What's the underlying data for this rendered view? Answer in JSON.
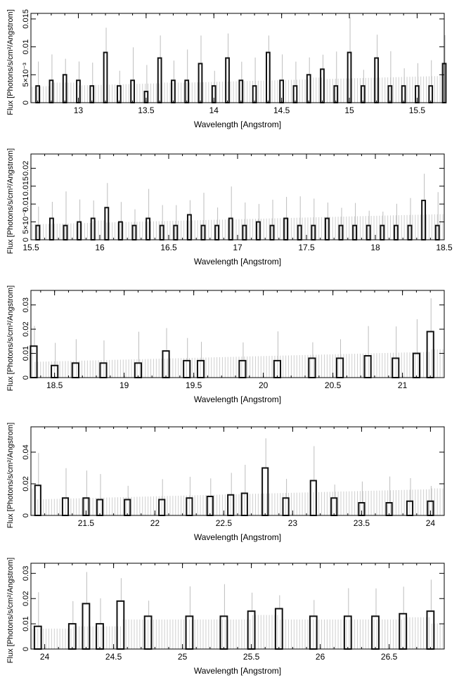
{
  "colors": {
    "model": "#cfcfcf",
    "data": "#111111",
    "errorbar": "#bdbdbd",
    "axis": "#000000"
  },
  "chart_data": [
    {
      "type": "line",
      "xlabel": "Wavelength [Angstrom]",
      "ylabel": "Flux [Photons/s/cm²/Angstrom]",
      "xlim": [
        12.65,
        15.7
      ],
      "ylim": [
        0,
        0.016
      ],
      "xticks": [
        13,
        13.5,
        14,
        14.5,
        15,
        15.5
      ],
      "xticklabels": [
        "13",
        "13.5",
        "14",
        "14.5",
        "15",
        "15.5"
      ],
      "yticks": [
        0,
        0.005,
        0.01,
        0.015
      ],
      "yticklabels": [
        "0",
        "5×10⁻³",
        "0.01",
        "0.015"
      ],
      "grid": false,
      "series": [
        {
          "x": [
            12.7,
            12.8,
            12.9,
            13.0,
            13.1,
            13.2,
            13.3,
            13.4,
            13.5,
            13.6,
            13.7,
            13.8,
            13.9,
            14.0,
            14.1,
            14.2,
            14.3,
            14.4,
            14.5,
            14.6,
            14.7,
            14.8,
            14.9,
            15.0,
            15.1,
            15.2,
            15.3,
            15.4,
            15.5,
            15.6,
            15.7
          ],
          "y": [
            0.003,
            0.004,
            0.005,
            0.004,
            0.003,
            0.009,
            0.003,
            0.004,
            0.002,
            0.008,
            0.004,
            0.004,
            0.007,
            0.003,
            0.008,
            0.004,
            0.003,
            0.009,
            0.004,
            0.003,
            0.005,
            0.006,
            0.003,
            0.009,
            0.003,
            0.008,
            0.003,
            0.003,
            0.003,
            0.003,
            0.007
          ]
        }
      ]
    },
    {
      "type": "line",
      "xlabel": "Wavelength [Angstrom]",
      "ylabel": "Flux [Photons/s/cm²/Angstrom]",
      "xlim": [
        15.5,
        18.5
      ],
      "ylim": [
        0,
        0.024
      ],
      "xticks": [
        15.5,
        16,
        16.5,
        17,
        17.5,
        18,
        18.5
      ],
      "xticklabels": [
        "15.5",
        "16",
        "16.5",
        "17",
        "17.5",
        "18",
        "18.5"
      ],
      "yticks": [
        0,
        0.005,
        0.01,
        0.015,
        0.02
      ],
      "yticklabels": [
        "0",
        "5×10⁻³",
        "0.01",
        "0.015",
        "0.02"
      ],
      "grid": false,
      "series": [
        {
          "x": [
            15.55,
            15.65,
            15.75,
            15.85,
            15.95,
            16.05,
            16.15,
            16.25,
            16.35,
            16.45,
            16.55,
            16.65,
            16.75,
            16.85,
            16.95,
            17.05,
            17.15,
            17.25,
            17.35,
            17.45,
            17.55,
            17.65,
            17.75,
            17.85,
            17.95,
            18.05,
            18.15,
            18.25,
            18.35,
            18.45
          ],
          "y": [
            0.004,
            0.006,
            0.004,
            0.005,
            0.006,
            0.009,
            0.005,
            0.004,
            0.006,
            0.004,
            0.004,
            0.007,
            0.004,
            0.004,
            0.006,
            0.004,
            0.005,
            0.004,
            0.006,
            0.004,
            0.004,
            0.006,
            0.004,
            0.004,
            0.004,
            0.004,
            0.004,
            0.004,
            0.011,
            0.004
          ]
        }
      ]
    },
    {
      "type": "line",
      "xlabel": "Wavelength [Angstrom]",
      "ylabel": "Flux [Photons/s/cm²/Angstrom]",
      "xlim": [
        18.33,
        21.3
      ],
      "ylim": [
        0,
        0.036
      ],
      "xticks": [
        18.5,
        19,
        19.5,
        20,
        20.5,
        21
      ],
      "xticklabels": [
        "18.5",
        "19",
        "19.5",
        "20",
        "20.5",
        "21"
      ],
      "yticks": [
        0,
        0.01,
        0.02,
        0.03
      ],
      "yticklabels": [
        "0",
        "0.01",
        "0.02",
        "0.03"
      ],
      "grid": false,
      "series": [
        {
          "x": [
            18.35,
            18.5,
            18.65,
            18.85,
            19.1,
            19.3,
            19.45,
            19.55,
            19.85,
            20.1,
            20.35,
            20.55,
            20.75,
            20.95,
            21.1,
            21.2
          ],
          "y": [
            0.013,
            0.005,
            0.006,
            0.006,
            0.006,
            0.011,
            0.007,
            0.007,
            0.007,
            0.007,
            0.008,
            0.008,
            0.009,
            0.008,
            0.01,
            0.019
          ]
        }
      ]
    },
    {
      "type": "line",
      "xlabel": "Wavelength [Angstrom]",
      "ylabel": "Flux [Photons/s/cm²/Angstrom]",
      "xlim": [
        21.1,
        24.1
      ],
      "ylim": [
        0,
        0.056
      ],
      "xticks": [
        21.5,
        22,
        22.5,
        23,
        23.5,
        24
      ],
      "xticklabels": [
        "21.5",
        "22",
        "22.5",
        "23",
        "23.5",
        "24"
      ],
      "yticks": [
        0,
        0.02,
        0.04
      ],
      "yticklabels": [
        "0",
        "0.02",
        "0.04"
      ],
      "grid": false,
      "series": [
        {
          "x": [
            21.15,
            21.35,
            21.5,
            21.6,
            21.8,
            22.05,
            22.25,
            22.4,
            22.55,
            22.65,
            22.8,
            22.95,
            23.15,
            23.3,
            23.5,
            23.7,
            23.85,
            24.0
          ],
          "y": [
            0.019,
            0.011,
            0.011,
            0.01,
            0.01,
            0.01,
            0.011,
            0.012,
            0.013,
            0.014,
            0.03,
            0.011,
            0.022,
            0.011,
            0.008,
            0.008,
            0.009,
            0.009
          ]
        }
      ]
    },
    {
      "type": "line",
      "xlabel": "Wavelength [Angstrom]",
      "ylabel": "Flux [Photons/s/cm²/Angstrom]",
      "xlim": [
        23.9,
        26.9
      ],
      "ylim": [
        0,
        0.034
      ],
      "xticks": [
        24,
        24.5,
        25,
        25.5,
        26,
        26.5
      ],
      "xticklabels": [
        "24",
        "24.5",
        "25",
        "25.5",
        "26",
        "26.5"
      ],
      "yticks": [
        0,
        0.01,
        0.02,
        0.03
      ],
      "yticklabels": [
        "0",
        "0.01",
        "0.02",
        "0.03"
      ],
      "grid": false,
      "series": [
        {
          "x": [
            23.95,
            24.2,
            24.3,
            24.4,
            24.55,
            24.75,
            25.05,
            25.3,
            25.5,
            25.7,
            25.95,
            26.2,
            26.4,
            26.6,
            26.8
          ],
          "y": [
            0.009,
            0.01,
            0.018,
            0.01,
            0.019,
            0.013,
            0.013,
            0.013,
            0.015,
            0.016,
            0.013,
            0.013,
            0.013,
            0.014,
            0.015
          ]
        }
      ]
    }
  ]
}
